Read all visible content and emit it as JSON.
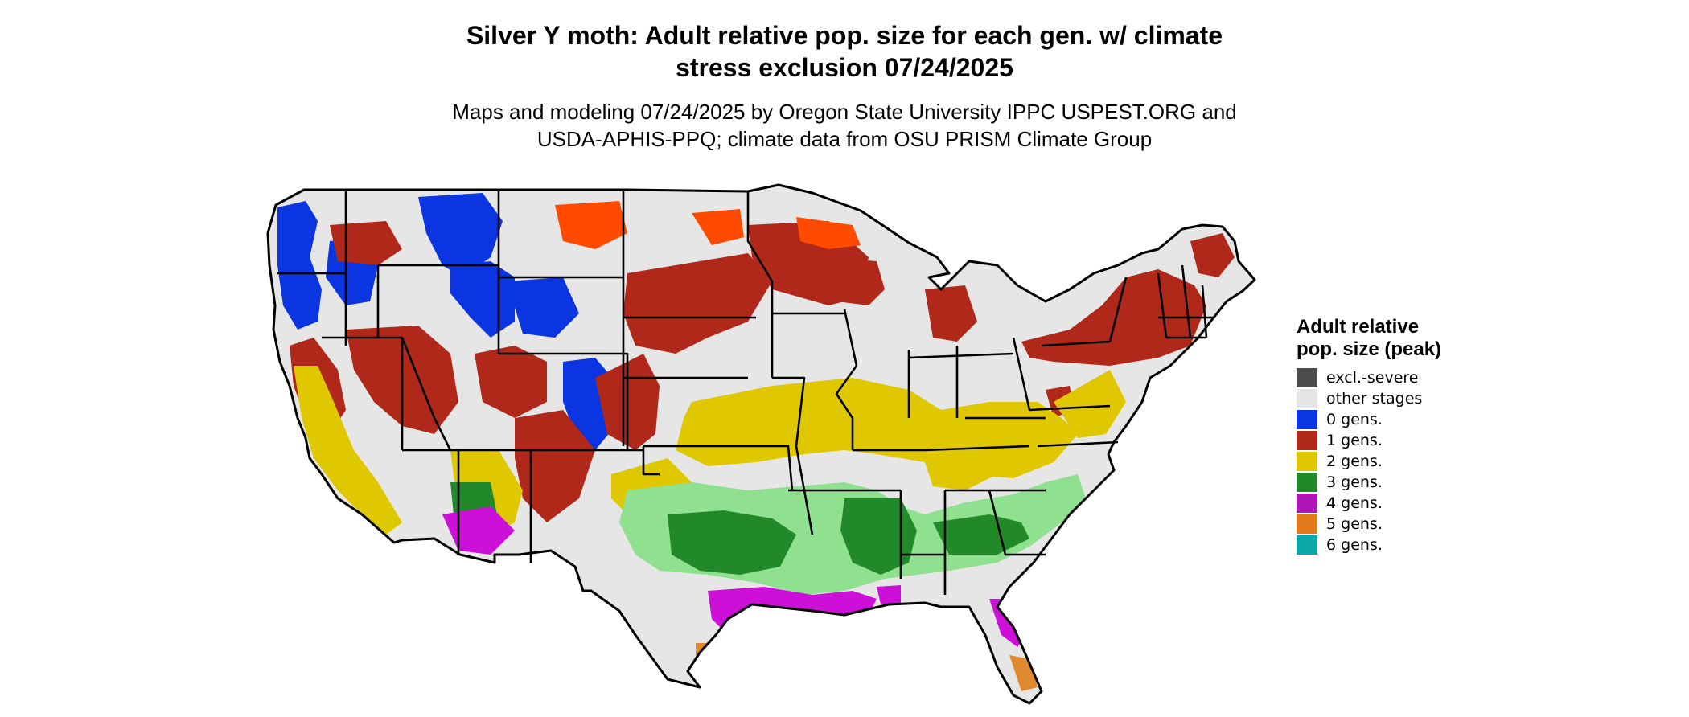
{
  "title": {
    "line1": "Silver Y moth: Adult relative pop. size for each gen. w/ climate",
    "line2": "stress exclusion 07/24/2025"
  },
  "subtitle": {
    "line1": "Maps and modeling 07/24/2025 by Oregon State University IPPC USPEST.ORG and",
    "line2": "USDA-APHIS-PPQ; climate data from OSU PRISM Climate Group"
  },
  "legend": {
    "title": "Adult relative pop. size (peak)",
    "items": [
      {
        "label": "excl.-severe",
        "color": "#4d4d4d"
      },
      {
        "label": "other stages",
        "color": "#e6e6e6"
      },
      {
        "label": "0 gens.",
        "color": "#0a35e0"
      },
      {
        "label": "1 gens.",
        "color": "#b0281a"
      },
      {
        "label": "2 gens.",
        "color": "#e0c800"
      },
      {
        "label": "3 gens.",
        "color": "#22892a"
      },
      {
        "label": "4 gens.",
        "color": "#b015b8"
      },
      {
        "label": "5 gens.",
        "color": "#e07a1a"
      },
      {
        "label": "6 gens.",
        "color": "#0aa8a8"
      }
    ]
  },
  "map_colors": {
    "land": "#e6e6e6",
    "border": "#000000",
    "gen0": "#0a35e0",
    "gen1": "#b0281a",
    "gen1_bright": "#ff4a00",
    "gen2": "#e0c800",
    "gen3": "#22892a",
    "gen3_light": "#8fe08f",
    "gen4": "#cc10d8",
    "gen5": "#e08a30"
  }
}
